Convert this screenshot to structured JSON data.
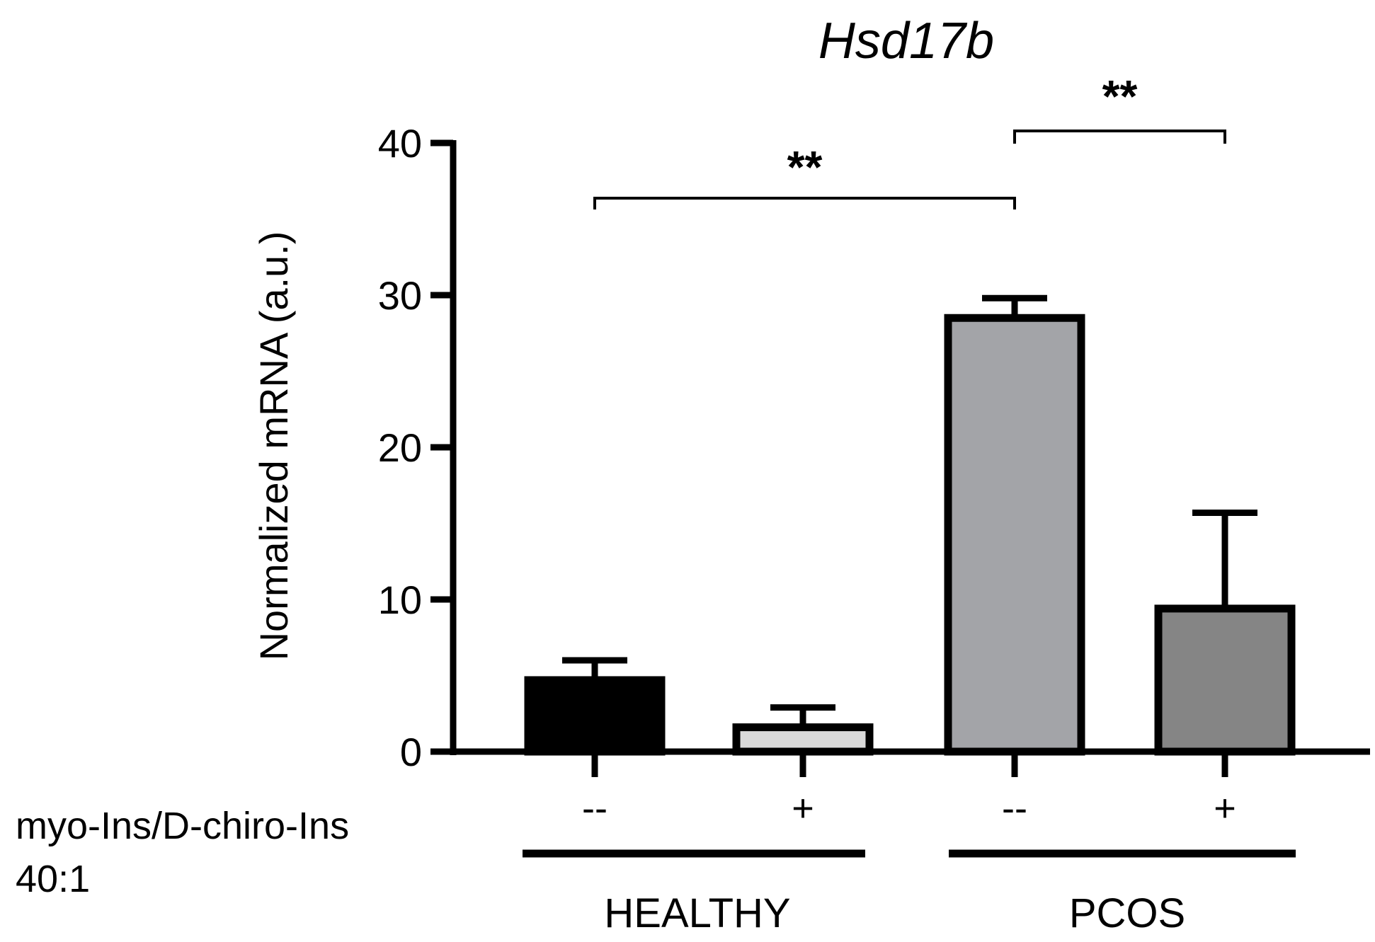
{
  "chart_data": {
    "type": "bar",
    "title": "Hsd17b",
    "xlabel": "",
    "ylabel": "Normalized mRNA (a.u.)",
    "ylim": [
      0,
      40
    ],
    "yticks": [
      0,
      10,
      20,
      30,
      40
    ],
    "categories": [
      "HEALTHY --",
      "HEALTHY +",
      "PCOS --",
      "PCOS +"
    ],
    "treatment_labels": [
      "--",
      "+",
      "--",
      "+"
    ],
    "values": [
      4.7,
      1.6,
      28.5,
      9.4
    ],
    "errors": [
      1.3,
      1.3,
      1.3,
      6.3
    ],
    "bar_colors": [
      "#000000",
      "#d9d9d9",
      "#a3a4a8",
      "#858585"
    ],
    "groups": [
      {
        "label": "HEALTHY",
        "bars": [
          0,
          1
        ]
      },
      {
        "label": "PCOS",
        "bars": [
          2,
          3
        ]
      }
    ],
    "row_label": [
      "myo-Ins/D-chiro-Ins",
      "40:1"
    ],
    "significance": [
      {
        "from": 0,
        "to": 2,
        "label": "**"
      },
      {
        "from": 2,
        "to": 3,
        "label": "**"
      }
    ],
    "grid": false,
    "legend": "none"
  }
}
